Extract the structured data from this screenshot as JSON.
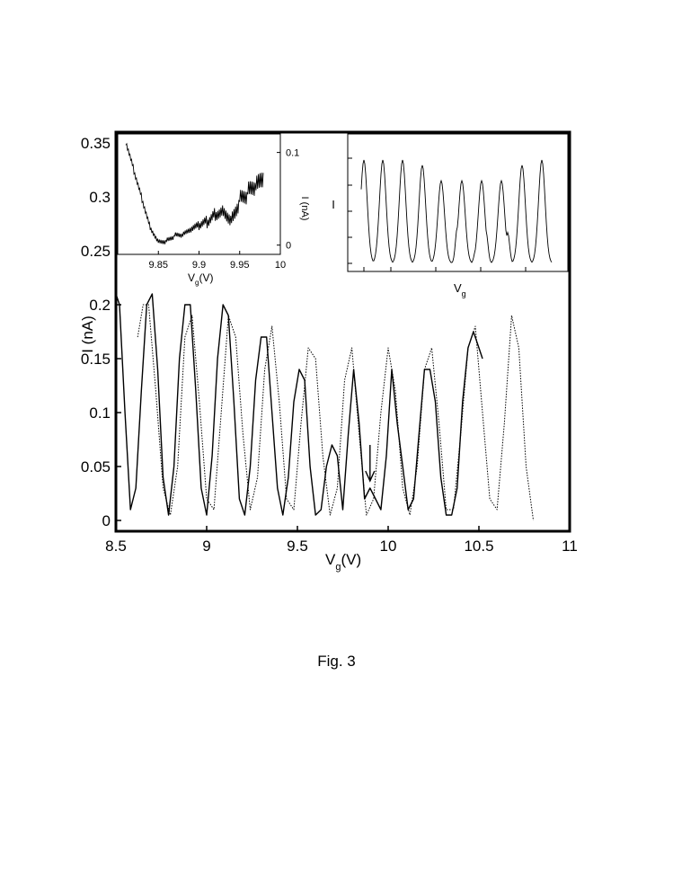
{
  "caption": "Fig. 3",
  "chart_data": [
    {
      "type": "line",
      "xlabel_main": "V",
      "xlabel_sub": "g",
      "xlabel_unit": "(V)",
      "ylabel": "I (nA)",
      "xlim": [
        8.5,
        11
      ],
      "ylim": [
        -0.01,
        0.36
      ],
      "xticks": [
        "8.5",
        "9",
        "9.5",
        "10",
        "10.5",
        "11"
      ],
      "xtick_values": [
        8.5,
        9,
        9.5,
        10,
        10.5,
        11
      ],
      "yticks": [
        "0",
        "0.05",
        "0.1",
        "0.15",
        "0.2",
        "0.25",
        "0.3",
        "0.35"
      ],
      "ytick_values": [
        0,
        0.05,
        0.1,
        0.15,
        0.2,
        0.25,
        0.3,
        0.35
      ],
      "annotation": "arrow at Vg ≈ 9.9",
      "arrow_x": 9.9,
      "series": [
        {
          "style": "solid",
          "x": [
            8.5,
            8.52,
            8.55,
            8.58,
            8.61,
            8.64,
            8.67,
            8.7,
            8.73,
            8.76,
            8.79,
            8.82,
            8.85,
            8.88,
            8.91,
            8.94,
            8.97,
            9.0,
            9.03,
            9.06,
            9.09,
            9.12,
            9.15,
            9.18,
            9.21,
            9.24,
            9.27,
            9.3,
            9.33,
            9.36,
            9.39,
            9.42,
            9.45,
            9.48,
            9.51,
            9.54,
            9.57,
            9.6,
            9.63,
            9.66,
            9.69,
            9.72,
            9.75,
            9.78,
            9.81,
            9.84,
            9.87,
            9.9,
            9.93,
            9.96,
            9.99,
            10.02,
            10.05,
            10.08,
            10.11,
            10.14,
            10.17,
            10.2,
            10.23,
            10.26,
            10.29,
            10.32,
            10.35,
            10.38,
            10.41,
            10.44,
            10.47,
            10.5,
            10.52
          ],
          "y": [
            0.21,
            0.2,
            0.1,
            0.01,
            0.03,
            0.12,
            0.2,
            0.21,
            0.14,
            0.04,
            0.005,
            0.05,
            0.15,
            0.2,
            0.2,
            0.12,
            0.03,
            0.005,
            0.06,
            0.15,
            0.2,
            0.19,
            0.11,
            0.02,
            0.005,
            0.05,
            0.13,
            0.17,
            0.17,
            0.1,
            0.03,
            0.005,
            0.04,
            0.11,
            0.14,
            0.13,
            0.05,
            0.005,
            0.01,
            0.05,
            0.07,
            0.06,
            0.01,
            0.08,
            0.14,
            0.09,
            0.02,
            0.03,
            0.02,
            0.01,
            0.06,
            0.14,
            0.09,
            0.05,
            0.01,
            0.02,
            0.08,
            0.14,
            0.14,
            0.11,
            0.04,
            0.005,
            0.005,
            0.03,
            0.11,
            0.16,
            0.175,
            0.16,
            0.15
          ]
        },
        {
          "style": "dotted",
          "x": [
            8.62,
            8.65,
            8.68,
            8.72,
            8.76,
            8.8,
            8.84,
            8.88,
            8.92,
            8.96,
            9.0,
            9.04,
            9.08,
            9.12,
            9.16,
            9.2,
            9.24,
            9.28,
            9.32,
            9.36,
            9.4,
            9.44,
            9.48,
            9.52,
            9.56,
            9.6,
            9.64,
            9.68,
            9.72,
            9.76,
            9.8,
            9.84,
            9.88,
            9.92,
            9.96,
            10.0,
            10.04,
            10.08,
            10.12,
            10.16,
            10.2,
            10.24,
            10.28,
            10.32,
            10.36,
            10.4,
            10.44,
            10.48,
            10.52,
            10.56,
            10.6,
            10.64,
            10.68,
            10.72,
            10.76,
            10.8
          ],
          "y": [
            0.17,
            0.2,
            0.2,
            0.12,
            0.03,
            0.005,
            0.05,
            0.17,
            0.19,
            0.11,
            0.02,
            0.01,
            0.1,
            0.19,
            0.17,
            0.08,
            0.01,
            0.04,
            0.14,
            0.18,
            0.11,
            0.02,
            0.01,
            0.09,
            0.16,
            0.15,
            0.06,
            0.005,
            0.03,
            0.13,
            0.16,
            0.08,
            0.005,
            0.02,
            0.1,
            0.16,
            0.12,
            0.03,
            0.005,
            0.05,
            0.14,
            0.16,
            0.09,
            0.01,
            0.01,
            0.08,
            0.16,
            0.18,
            0.1,
            0.02,
            0.01,
            0.09,
            0.19,
            0.16,
            0.05,
            0.0
          ]
        }
      ]
    },
    {
      "type": "line",
      "xlabel_main": "V",
      "xlabel_sub": "g",
      "xlabel_unit": "(V)",
      "ylabel": "I (nA)",
      "xlim": [
        9.8,
        10.0
      ],
      "ylim": [
        -0.01,
        0.12
      ],
      "xticks": [
        "9.85",
        "9.9",
        "9.95",
        "10"
      ],
      "xtick_values": [
        9.85,
        9.9,
        9.95,
        10.0
      ],
      "yticks": [
        "0",
        "0.1"
      ],
      "ytick_values": [
        0,
        0.1
      ],
      "series": [
        {
          "style": "solid",
          "x": [
            9.81,
            9.82,
            9.83,
            9.84,
            9.85,
            9.86,
            9.87,
            9.88,
            9.89,
            9.9,
            9.91,
            9.92,
            9.93,
            9.94,
            9.95,
            9.96,
            9.97,
            9.98
          ],
          "y": [
            0.11,
            0.08,
            0.05,
            0.02,
            0.005,
            0.005,
            0.01,
            0.01,
            0.015,
            0.02,
            0.025,
            0.035,
            0.04,
            0.03,
            0.05,
            0.055,
            0.06,
            0.065
          ]
        }
      ]
    },
    {
      "type": "line",
      "xlabel_main": "V",
      "xlabel_sub": "g",
      "ylabel": "I",
      "series": [
        {
          "style": "solid",
          "note": "schematic oscillation, no tick labels"
        }
      ]
    }
  ]
}
